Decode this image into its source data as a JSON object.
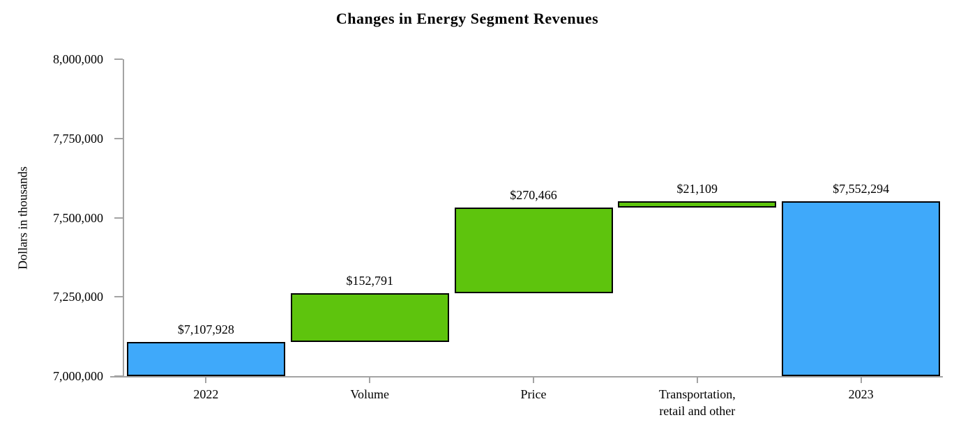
{
  "chart_data": {
    "type": "bar",
    "subtype": "waterfall",
    "title": "Changes in Energy Segment Revenues",
    "ylabel": "Dollars in thousands",
    "xlabel": "",
    "ylim": [
      7000000,
      8000000
    ],
    "ytick_interval": 250000,
    "ytick_labels": [
      "7,000,000",
      "7,250,000",
      "7,500,000",
      "7,750,000",
      "8,000,000"
    ],
    "grid": false,
    "legend": "none",
    "colors": {
      "total": "#3fa9fa",
      "change": "#5ec40d",
      "bar_border": "#000000",
      "axis": "#a3a3a3",
      "text": "#000000"
    },
    "bars": [
      {
        "category": "2022",
        "label": "$7,107,928",
        "value": 7107928,
        "base": 7000000,
        "top": 7107928,
        "role": "total"
      },
      {
        "category": "Volume",
        "label": "$152,791",
        "value": 152791,
        "base": 7107928,
        "top": 7260719,
        "role": "change"
      },
      {
        "category": "Price",
        "label": "$270,466",
        "value": 270466,
        "base": 7260719,
        "top": 7531185,
        "role": "change"
      },
      {
        "category": "Transportation,\nretail and other",
        "label": "$21,109",
        "value": 21109,
        "base": 7531185,
        "top": 7552294,
        "role": "change"
      },
      {
        "category": "2023",
        "label": "$7,552,294",
        "value": 7552294,
        "base": 7000000,
        "top": 7552294,
        "role": "total"
      }
    ]
  }
}
